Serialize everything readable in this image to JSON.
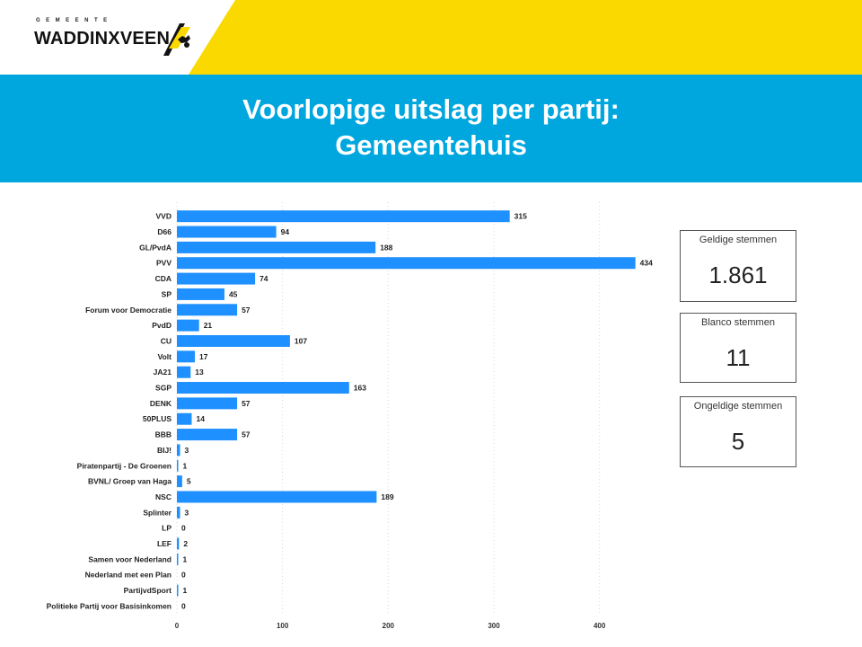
{
  "header": {
    "logo_small": "GEMEENTE",
    "logo_main": "WADDINXVEEN",
    "title_line1": "Voorlopige uitslag per partij:",
    "title_line2": "Gemeentehuis"
  },
  "colors": {
    "yellow": "#f9d900",
    "blue": "#00a6de",
    "bar": "#1e90ff"
  },
  "cards": [
    {
      "label": "Geldige stemmen",
      "value": "1.861"
    },
    {
      "label": "Blanco stemmen",
      "value": "11"
    },
    {
      "label": "Ongeldige stemmen",
      "value": "5"
    }
  ],
  "chart_data": {
    "type": "bar",
    "orientation": "horizontal",
    "categories": [
      "VVD",
      "D66",
      "GL/PvdA",
      "PVV",
      "CDA",
      "SP",
      "Forum voor Democratie",
      "PvdD",
      "CU",
      "Volt",
      "JA21",
      "SGP",
      "DENK",
      "50PLUS",
      "BBB",
      "BIJ!",
      "Piratenpartij - De Groenen",
      "BVNL/ Groep van Haga",
      "NSC",
      "Splinter",
      "LP",
      "LEF",
      "Samen voor Nederland",
      "Nederland met een Plan",
      "PartijvdSport",
      "Politieke Partij voor Basisinkomen"
    ],
    "values": [
      315,
      94,
      188,
      434,
      74,
      45,
      57,
      21,
      107,
      17,
      13,
      163,
      57,
      14,
      57,
      3,
      1,
      5,
      189,
      3,
      0,
      2,
      1,
      0,
      1,
      0
    ],
    "xlim": [
      0,
      600
    ],
    "xticks": [
      0,
      100,
      200,
      300,
      400,
      500,
      600
    ],
    "grid": true
  }
}
